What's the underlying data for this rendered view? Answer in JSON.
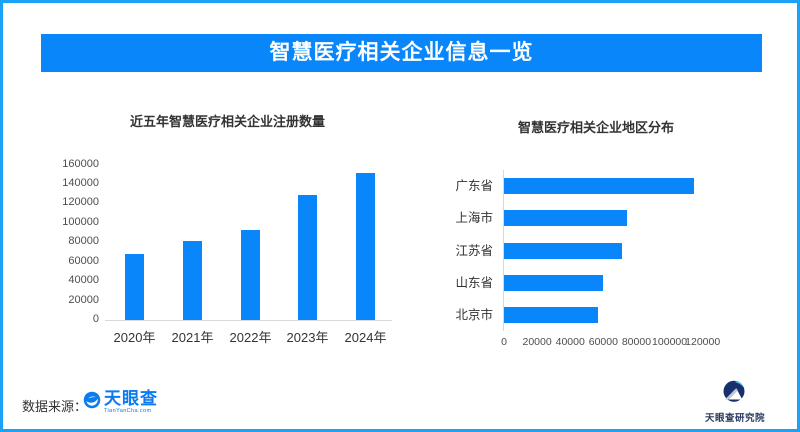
{
  "header": {
    "title": "智慧医疗相关企业信息一览"
  },
  "colors": {
    "accent_blue": "#0886fa",
    "frame_blue": "#1ba2f6",
    "bar_blue": "#0886fa",
    "logo_blue": "#0b7cf0",
    "institute_navy": "#2b3a60",
    "axis_gray": "#d9d9d9"
  },
  "chart_data": [
    {
      "type": "bar",
      "orientation": "vertical",
      "title": "近五年智慧医疗相关企业注册数量",
      "categories": [
        "2020年",
        "2021年",
        "2022年",
        "2023年",
        "2024年"
      ],
      "values": [
        68000,
        81000,
        93000,
        129000,
        151000
      ],
      "xlabel": "",
      "ylabel": "",
      "ylim": [
        0,
        160000
      ],
      "ytick_step": 20000,
      "grid": false,
      "legend": "none",
      "bar_color": "#0886fa"
    },
    {
      "type": "bar",
      "orientation": "horizontal",
      "title": "智慧医疗相关企业地区分布",
      "categories": [
        "广东省",
        "上海市",
        "江苏省",
        "山东省",
        "北京市"
      ],
      "values": [
        115000,
        74000,
        71000,
        60000,
        57000
      ],
      "xlabel": "",
      "ylabel": "",
      "xlim": [
        0,
        120000
      ],
      "xtick_step": 20000,
      "grid": false,
      "legend": "none",
      "bar_color": "#0886fa"
    }
  ],
  "footer": {
    "source_label": "数据来源：",
    "tianyancha": {
      "name": "天眼查",
      "sub": "TianYanCha.com",
      "icon": "tianyancha-eye-icon"
    },
    "institute": {
      "label": "天眼查研究院",
      "icon": "tianyancha-institute-logo-icon"
    }
  }
}
